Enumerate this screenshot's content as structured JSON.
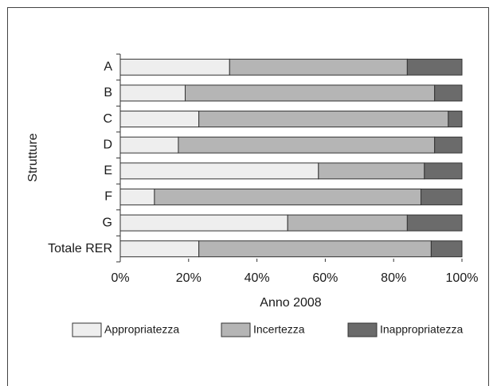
{
  "chart_data": {
    "type": "stacked_bar_horizontal",
    "y_label": "Strutture",
    "x_label": "Anno 2008",
    "categories": [
      "A",
      "B",
      "C",
      "D",
      "E",
      "F",
      "G",
      "Totale RER"
    ],
    "series": [
      {
        "name": "Appropriatezza",
        "color": "#eeeeee",
        "values": [
          32,
          19,
          23,
          17,
          58,
          10,
          49,
          23
        ]
      },
      {
        "name": "Incertezza",
        "color": "#b5b5b5",
        "values": [
          52,
          73,
          73,
          75,
          31,
          78,
          35,
          68
        ]
      },
      {
        "name": "Inappropriatezza",
        "color": "#6b6b6b",
        "values": [
          16,
          8,
          4,
          8,
          11,
          12,
          16,
          9
        ]
      }
    ],
    "xlim": [
      0,
      100
    ],
    "xticks": [
      {
        "value": 0,
        "label": "0%"
      },
      {
        "value": 20,
        "label": "20%"
      },
      {
        "value": 40,
        "label": "40%"
      },
      {
        "value": 60,
        "label": "60%"
      },
      {
        "value": 80,
        "label": "80%"
      },
      {
        "value": 100,
        "label": "100%"
      }
    ],
    "legend": "bottom"
  }
}
